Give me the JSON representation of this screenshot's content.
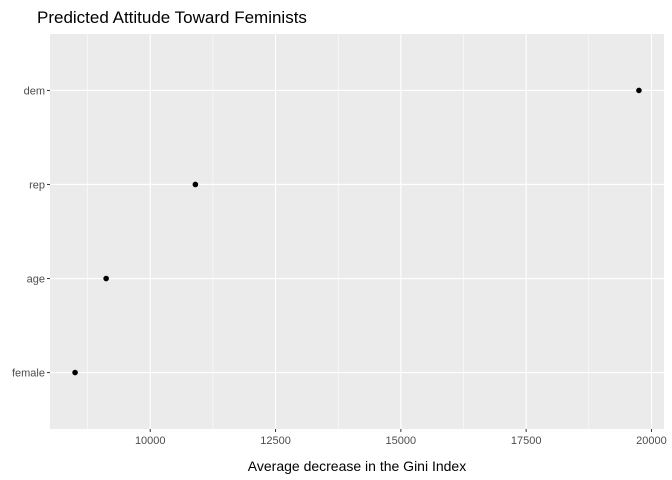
{
  "chart_data": {
    "type": "scatter",
    "title": "Predicted Attitude Toward Feminists",
    "xlabel": "Average decrease in the Gini Index",
    "ylabel": "",
    "categories": [
      "female",
      "age",
      "rep",
      "dem"
    ],
    "values": [
      8500,
      9120,
      10900,
      19750
    ],
    "xlim": [
      8000,
      20250
    ],
    "x_ticks": [
      10000,
      12500,
      15000,
      17500,
      20000
    ],
    "x_tick_labels": [
      "10000",
      "12500",
      "15000",
      "17500",
      "20000"
    ],
    "grid": true,
    "colors": {
      "panel_background": "#ebebeb",
      "grid_major": "#ffffff",
      "point": "#000000"
    }
  }
}
